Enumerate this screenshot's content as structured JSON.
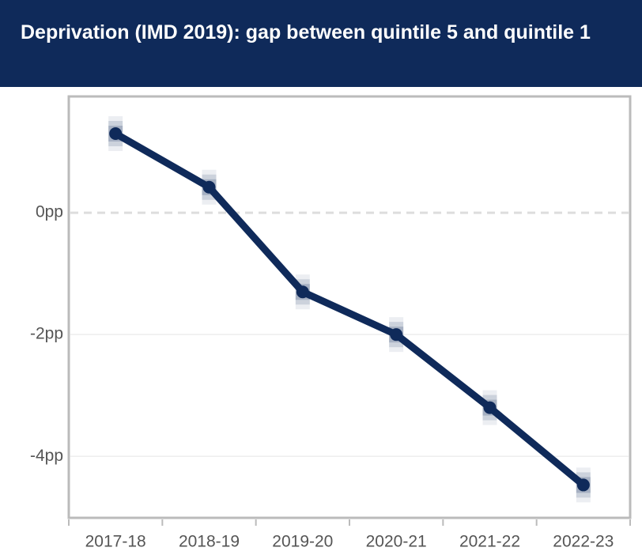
{
  "chart_data": {
    "type": "line",
    "title": "Deprivation (IMD 2019): gap between quintile 5 and quintile 1",
    "categories": [
      "2017-18",
      "2018-19",
      "2019-20",
      "2020-21",
      "2021-22",
      "2022-23"
    ],
    "series": [
      {
        "color": "#0f2a5a",
        "values": [
          1.3,
          0.42,
          -1.3,
          -2.0,
          -3.2,
          -4.47
        ]
      }
    ],
    "ylim": [
      -5.01,
      1.91
    ],
    "yticks": [
      {
        "value": -4,
        "label": "-4pp"
      },
      {
        "value": -2,
        "label": "-2pp"
      },
      {
        "value": 0,
        "label": "0pp"
      }
    ],
    "grid": true
  }
}
